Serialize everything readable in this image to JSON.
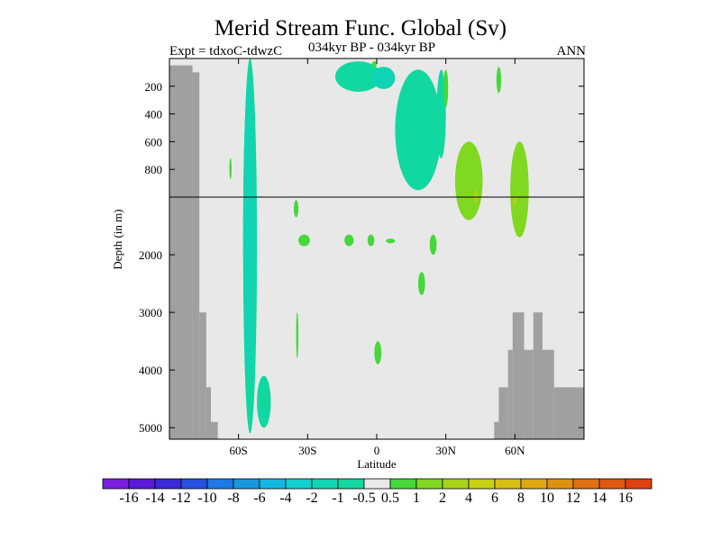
{
  "header": {
    "title": "Merid Stream Func. Global (Sv)",
    "expt": "Expt = tdxoC-tdwzC",
    "period": "034kyr BP - 034kyr BP",
    "season": "ANN"
  },
  "colors": {
    "background": "#e8e8e8",
    "land": "#a0a0a0",
    "frame": "#000000"
  },
  "chart_data": {
    "type": "heatmap",
    "title": "Merid Stream Func. Global (Sv)",
    "xlabel": "Latitude",
    "ylabel": "Depth (in m)",
    "xlim": [
      -90,
      90
    ],
    "ylim": [
      5200,
      0
    ],
    "y_split_depth": 1000,
    "x_ticks": [
      {
        "value": -60,
        "label": "60S"
      },
      {
        "value": -30,
        "label": "30S"
      },
      {
        "value": 0,
        "label": "0"
      },
      {
        "value": 30,
        "label": "30N"
      },
      {
        "value": 60,
        "label": "60N"
      }
    ],
    "y_ticks": [
      {
        "value": 200,
        "label": "200"
      },
      {
        "value": 400,
        "label": "400"
      },
      {
        "value": 600,
        "label": "600"
      },
      {
        "value": 800,
        "label": "800"
      },
      {
        "value": 2000,
        "label": "2000"
      },
      {
        "value": 3000,
        "label": "3000"
      },
      {
        "value": 4000,
        "label": "4000"
      },
      {
        "value": 5000,
        "label": "5000"
      }
    ],
    "colorbar": {
      "colors": [
        "#7a1ee0",
        "#5a18d8",
        "#3a2ad8",
        "#2850e0",
        "#1e78e6",
        "#1898e0",
        "#10b8e0",
        "#10d0d0",
        "#10d4b4",
        "#10d8a0",
        "#e8e8e8",
        "#44d838",
        "#80d820",
        "#a8d418",
        "#c8d010",
        "#d8c010",
        "#e0a810",
        "#e09010",
        "#e07010",
        "#e05810",
        "#e04010"
      ],
      "labels": [
        "-16",
        "-14",
        "-12",
        "-10",
        "-8",
        "-6",
        "-4",
        "-2",
        "-1",
        "-0.5",
        "0.5",
        "1",
        "2",
        "4",
        "6",
        "8",
        "10",
        "12",
        "14",
        "16"
      ]
    },
    "land_mask": [
      {
        "lat_from": -90,
        "lat_to": -80,
        "depth_from": 50,
        "depth_to": 5200
      },
      {
        "lat_from": -80,
        "lat_to": -77,
        "depth_from": 100,
        "depth_to": 5200
      },
      {
        "lat_from": -77,
        "lat_to": -74,
        "depth_from": 3000,
        "depth_to": 5200
      },
      {
        "lat_from": -74,
        "lat_to": -72,
        "depth_from": 4300,
        "depth_to": 5200
      },
      {
        "lat_from": -72,
        "lat_to": -69,
        "depth_from": 4900,
        "depth_to": 5200
      },
      {
        "lat_from": 51,
        "lat_to": 53,
        "depth_from": 4900,
        "depth_to": 5200
      },
      {
        "lat_from": 53,
        "lat_to": 57,
        "depth_from": 4300,
        "depth_to": 5200
      },
      {
        "lat_from": 57,
        "lat_to": 59,
        "depth_from": 3650,
        "depth_to": 5200
      },
      {
        "lat_from": 59,
        "lat_to": 64,
        "depth_from": 3000,
        "depth_to": 5200
      },
      {
        "lat_from": 64,
        "lat_to": 68,
        "depth_from": 3650,
        "depth_to": 5200
      },
      {
        "lat_from": 68,
        "lat_to": 72,
        "depth_from": 3000,
        "depth_to": 5200
      },
      {
        "lat_from": 72,
        "lat_to": 77,
        "depth_from": 3650,
        "depth_to": 5200
      },
      {
        "lat_from": 77,
        "lat_to": 90,
        "depth_from": 4300,
        "depth_to": 5200
      }
    ],
    "features": [
      {
        "name": "deep-southern-cell",
        "value": -1,
        "lat": [
          -58,
          -52
        ],
        "depth": [
          0,
          5100
        ]
      },
      {
        "name": "southern-cell-core",
        "value": -2,
        "lat": [
          -58,
          -53
        ],
        "depth": [
          150,
          4200
        ]
      },
      {
        "name": "southern-cell-foot",
        "value": -1,
        "lat": [
          -52,
          -46
        ],
        "depth": [
          4100,
          5000
        ]
      },
      {
        "name": "upper-tropical-cell",
        "value": -1,
        "lat": [
          -18,
          2
        ],
        "depth": [
          20,
          240
        ]
      },
      {
        "name": "upper-tropical-core",
        "value": -2,
        "lat": [
          -2,
          8
        ],
        "depth": [
          60,
          220
        ]
      },
      {
        "name": "northward-descending-cell",
        "value": -1,
        "lat": [
          8,
          28
        ],
        "depth": [
          80,
          950
        ]
      },
      {
        "name": "subtropical-narrow-cell",
        "value": -1,
        "lat": [
          26,
          30
        ],
        "depth": [
          80,
          720
        ]
      },
      {
        "name": "northern-positive-cell",
        "value": 1,
        "lat": [
          34,
          46
        ],
        "depth": [
          600,
          1400
        ]
      },
      {
        "name": "northern-positive-core",
        "value": 2,
        "lat": [
          42,
          44
        ],
        "depth": [
          950,
          1100
        ]
      },
      {
        "name": "high-lat-positive-cell",
        "value": 1,
        "lat": [
          58,
          66
        ],
        "depth": [
          600,
          1700
        ]
      },
      {
        "name": "high-lat-positive-core",
        "value": 2,
        "lat": [
          59,
          61
        ],
        "depth": [
          1000,
          1150
        ]
      },
      {
        "name": "upper-positive-small",
        "value": 0.5,
        "lat": [
          -2,
          0
        ],
        "depth": [
          20,
          60
        ]
      },
      {
        "name": "upper-north-streak",
        "value": 0.5,
        "lat": [
          29,
          31
        ],
        "depth": [
          80,
          350
        ]
      },
      {
        "name": "upper-mid-streak",
        "value": 0.5,
        "lat": [
          52,
          54
        ],
        "depth": [
          60,
          250
        ]
      },
      {
        "name": "patch-45S",
        "value": 0.5,
        "lat": [
          -36,
          -34
        ],
        "depth": [
          1050,
          1350
        ]
      },
      {
        "name": "patch-35S",
        "value": 0.5,
        "lat": [
          -34,
          -29
        ],
        "depth": [
          1650,
          1850
        ]
      },
      {
        "name": "patch-15S",
        "value": 0.5,
        "lat": [
          -14,
          -10
        ],
        "depth": [
          1650,
          1850
        ]
      },
      {
        "name": "patch-5S",
        "value": 0.5,
        "lat": [
          -4,
          -1
        ],
        "depth": [
          1650,
          1850
        ]
      },
      {
        "name": "patch-4N",
        "value": 0.5,
        "lat": [
          4,
          8
        ],
        "depth": [
          1720,
          1800
        ]
      },
      {
        "name": "patch-22N",
        "value": 0.5,
        "lat": [
          23,
          26
        ],
        "depth": [
          1650,
          2000
        ]
      },
      {
        "name": "patch-19N",
        "value": 0.5,
        "lat": [
          18,
          21
        ],
        "depth": [
          2300,
          2700
        ]
      },
      {
        "name": "patch-35S-deep",
        "value": 0.5,
        "lat": [
          -35,
          -34
        ],
        "depth": [
          3000,
          3800
        ]
      },
      {
        "name": "patch-0-deep",
        "value": 0.5,
        "lat": [
          -1,
          2
        ],
        "depth": [
          3500,
          3900
        ]
      },
      {
        "name": "patch-65S-upper",
        "value": 0.5,
        "lat": [
          -64,
          -63
        ],
        "depth": [
          720,
          870
        ]
      }
    ]
  }
}
